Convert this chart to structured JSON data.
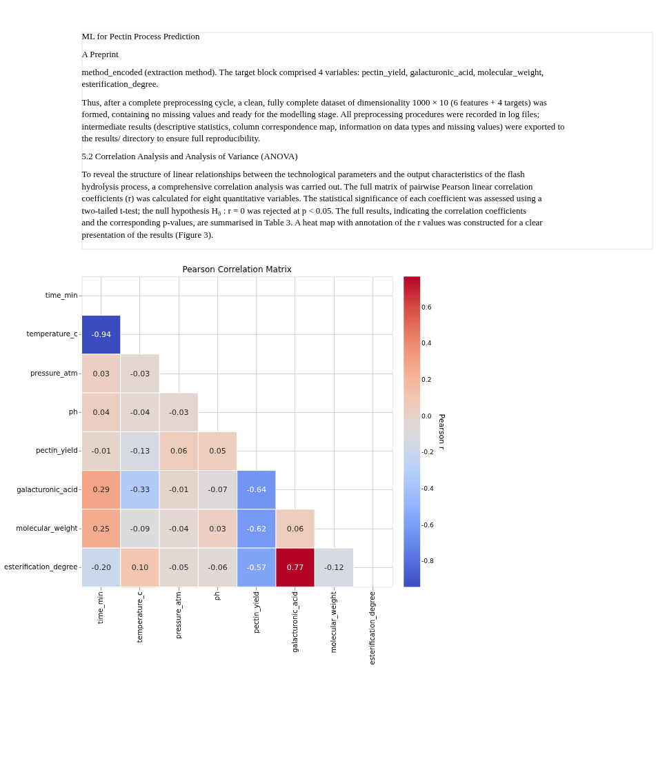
{
  "chart_data": {
    "type": "heatmap",
    "title": "Pearson Correlation Matrix",
    "clabel": "Pearson r",
    "annotations": [
      "ML for Pectin Process Prediction",
      "A Preprint",
      "method_encoded (extraction method). The target block comprised 4 variables: pectin_yield, galacturonic_acid, molecular_weight, esterification_degree.",
      "Thus, after a complete preprocessing cycle, a clean, fully complete dataset of dimensionality 1000 × 10 (6 features + 4 targets) was formed, containing no missing values and ready for the modelling stage. All preprocessing procedures were recorded in log files; intermediate results (descriptive statistics, column correspondence map, information on data types and missing values) were exported to the results/ directory to ensure full reproducibility.",
      "5.2   Correlation Analysis and Analysis of Variance (ANOVA)",
      "To reveal the structure of linear relationships between the technological parameters and the output characteristics of the flash hydrolysis process, a comprehensive correlation analysis was carried out. The full matrix of pairwise Pearson linear correlation coefficients (r) was calculated for eight quantitative variables. The statistical significance of each coefficient was assessed using a two-tailed t-test; the null hypothesis H₀ : r = 0 was rejected at p < 0.05. The full results, indicating the correlation coefficients and the corresponding p-values, are summarised in Table 3. A heat map with annotation of the r values was constructed for a clear presentation of the results (Figure 3)."
    ],
    "categories": [
      "time_min",
      "temperature_c",
      "pressure_atm",
      "ph",
      "pectin_yield",
      "galacturonic_acid",
      "molecular_weight",
      "esterification_degree"
    ],
    "y_categories": [
      "time_min",
      "temperature_c",
      "pressure_atm",
      "ph",
      "pectin_yield",
      "galacturonic_acid",
      "molecular_weight",
      "esterification_degree"
    ],
    "cells": [
      [
        null,
        null,
        null,
        null,
        null,
        null,
        null,
        null
      ],
      [
        -0.94,
        null,
        null,
        null,
        null,
        null,
        null,
        null
      ],
      [
        0.03,
        -0.03,
        null,
        null,
        null,
        null,
        null,
        null
      ],
      [
        0.04,
        -0.04,
        -0.03,
        null,
        null,
        null,
        null,
        null
      ],
      [
        -0.01,
        -0.13,
        0.06,
        0.05,
        null,
        null,
        null,
        null
      ],
      [
        0.29,
        -0.33,
        -0.01,
        -0.07,
        -0.64,
        null,
        null,
        null
      ],
      [
        0.25,
        -0.09,
        -0.04,
        0.03,
        -0.62,
        0.06,
        null,
        null
      ],
      [
        -0.2,
        0.1,
        -0.05,
        -0.06,
        -0.57,
        0.77,
        -0.12,
        null
      ]
    ],
    "cell_labels": [
      [
        null,
        null,
        null,
        null,
        null,
        null,
        null,
        null
      ],
      [
        "-0.94",
        null,
        null,
        null,
        null,
        null,
        null,
        null
      ],
      [
        "0.03",
        "-0.03",
        null,
        null,
        null,
        null,
        null,
        null
      ],
      [
        "0.04",
        "-0.04",
        "-0.03",
        null,
        null,
        null,
        null,
        null
      ],
      [
        "-0.01",
        "-0.13",
        "0.06",
        "0.05",
        null,
        null,
        null,
        null
      ],
      [
        "0.29",
        "-0.33",
        "-0.01",
        "-0.07",
        "-0.64",
        null,
        null,
        null
      ],
      [
        "0.25",
        "-0.09",
        "-0.04",
        "0.03",
        "-0.62",
        "0.06",
        null,
        null
      ],
      [
        "-0.20",
        "0.10",
        "-0.05",
        "-0.06",
        "-0.57",
        "0.77",
        "-0.12",
        null
      ]
    ],
    "clim": [
      -0.94,
      0.77
    ],
    "cticks": [
      -0.8,
      -0.6,
      -0.4,
      -0.2,
      {
        "value": 0,
        "label": "0.0"
      },
      0.2,
      0.4,
      0.6
    ],
    "data_labels": true,
    "grid": true
  }
}
